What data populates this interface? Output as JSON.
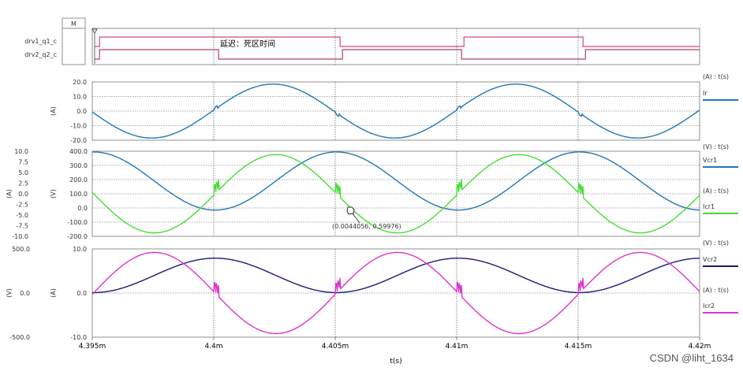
{
  "chart_data": [
    {
      "type": "line",
      "panel": "digital",
      "marker_label": "M",
      "series": [
        {
          "name": "drv1_q1_c",
          "color": "#d04a70",
          "levels": [
            {
              "t": 4.3951,
              "v": 0
            },
            {
              "t": 4.3953,
              "v": 1
            },
            {
              "t": 4.4052,
              "v": 0
            },
            {
              "t": 4.4103,
              "v": 1
            },
            {
              "t": 4.4152,
              "v": 0
            }
          ]
        },
        {
          "name": "drv2_q2_c",
          "color": "#b0406a",
          "levels": [
            {
              "t": 4.3951,
              "v": 0
            },
            {
              "t": 4.3953,
              "v": 1
            },
            {
              "t": 4.4002,
              "v": 0
            },
            {
              "t": 4.4053,
              "v": 1
            },
            {
              "t": 4.4102,
              "v": 0
            },
            {
              "t": 4.4153,
              "v": 1
            }
          ]
        }
      ],
      "annotation": "延迟：死区时间"
    },
    {
      "type": "line",
      "panel": "ir",
      "ylabel": "(A)",
      "yticks": [
        "20.0",
        "10.0",
        "0.0",
        "-10.0",
        "-20.0"
      ],
      "ylim": [
        -20,
        20
      ],
      "legend": {
        "header": "(A) : t(s)",
        "entries": [
          "Ir"
        ]
      },
      "series": [
        {
          "name": "Ir",
          "color": "#1f77b4",
          "amplitude": 18.5,
          "period_ms": 0.01,
          "phase_ref_ms": 4.40015
        }
      ]
    },
    {
      "type": "line",
      "panel": "vcr1-icr1",
      "ylabel_left": "(A)",
      "ylabel_right": "(V)",
      "yticks_left": [
        "10.0",
        "7.5",
        "5.0",
        "2.5",
        "0.0",
        "-2.5",
        "-5.0",
        "-7.5",
        "-10.0"
      ],
      "yticks_right": [
        "400.0",
        "300.0",
        "200.0",
        "100.0",
        "0.0",
        "-100.0",
        "-200.0"
      ],
      "ylim_left": [
        -10,
        10
      ],
      "ylim_right": [
        -200,
        400
      ],
      "legend": [
        {
          "header": "(V) : t(s)",
          "entries": [
            "Vcr1"
          ]
        },
        {
          "header": "(A) : t(s)",
          "entries": [
            "Icr1"
          ]
        }
      ],
      "series": [
        {
          "name": "Vcr1",
          "color": "#1f77b4",
          "axis": "right",
          "min": -15,
          "max": 395
        },
        {
          "name": "Icr1",
          "color": "#44dd33",
          "axis": "left",
          "amplitude": 9.2
        }
      ],
      "cursor_label": "(0.0044056, 0.59976)"
    },
    {
      "type": "line",
      "panel": "vcr2-icr2",
      "ylabel_left": "(V)",
      "ylabel_right": "(A)",
      "yticks_left": [
        "500.0",
        "0.0",
        "-500.0"
      ],
      "yticks_right": [
        "10.0",
        "0.0",
        "-10.0"
      ],
      "ylim_left": [
        -500,
        500
      ],
      "ylim_right": [
        -10,
        10
      ],
      "legend": [
        {
          "header": "(V) : t(s)",
          "entries": [
            "Vcr2"
          ]
        },
        {
          "header": "(A) : t(s)",
          "entries": [
            "Icr2"
          ]
        }
      ],
      "series": [
        {
          "name": "Vcr2",
          "color": "#1a1a7a",
          "axis": "left",
          "min": 5,
          "max": 395
        },
        {
          "name": "Icr2",
          "color": "#dd33cc",
          "axis": "right",
          "amplitude": 9.2
        }
      ]
    }
  ],
  "x_axis": {
    "label": "t(s)",
    "range_ms": [
      4.395,
      4.42
    ],
    "ticks": [
      {
        "t": 4.395,
        "label": "4.395m"
      },
      {
        "t": 4.4,
        "label": "4.4m"
      },
      {
        "t": 4.405,
        "label": "4.405m"
      },
      {
        "t": 4.41,
        "label": "4.41m"
      },
      {
        "t": 4.415,
        "label": "4.415m"
      },
      {
        "t": 4.42,
        "label": "4.42m"
      }
    ]
  },
  "watermark": "CSDN @liht_1634"
}
